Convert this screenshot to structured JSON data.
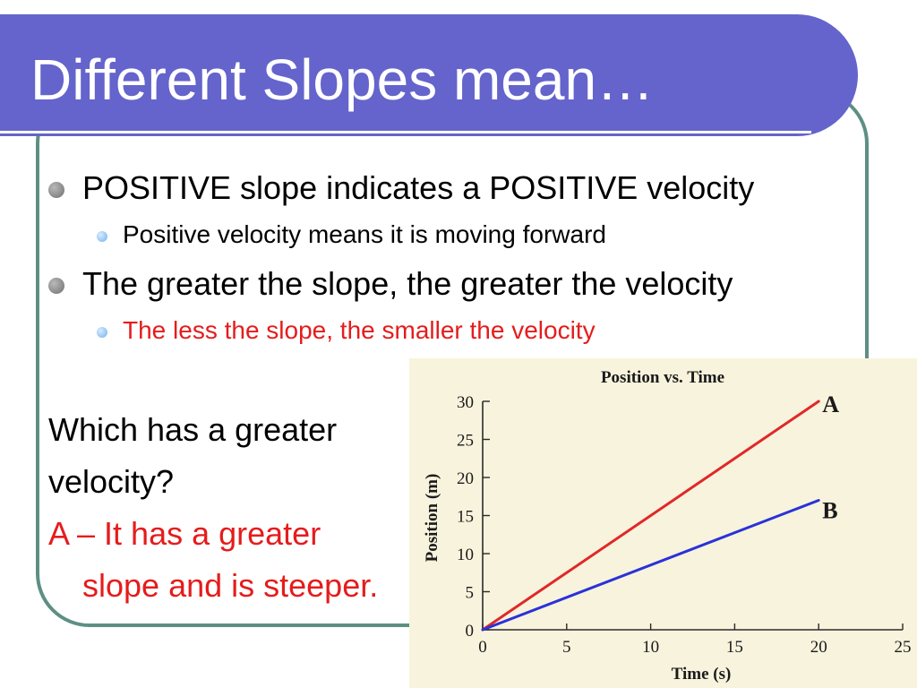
{
  "slide": {
    "title": "Different Slopes mean…",
    "bullets": [
      {
        "text": "POSITIVE slope indicates a POSITIVE velocity",
        "sub": "Positive velocity means it is moving forward",
        "sub_color": "#000000"
      },
      {
        "text": "The greater the slope, the greater the velocity",
        "sub": "The less the slope, the smaller the velocity",
        "sub_color": "#e51c1c"
      }
    ],
    "question_line1": "Which has a greater",
    "question_line2": "velocity?",
    "answer_line1": "A – It has a greater",
    "answer_line2": "slope and is steeper.",
    "answer_color": "#e51c1c",
    "colors": {
      "title_bar": "#6464cc",
      "frame_border": "#5e8f83",
      "chart_bg": "#f8f3dd"
    }
  },
  "chart_data": {
    "type": "line",
    "title": "Position vs. Time",
    "xlabel": "Time (s)",
    "ylabel": "Position (m)",
    "xlim": [
      0,
      25
    ],
    "ylim": [
      0,
      30
    ],
    "xticks": [
      0,
      5,
      10,
      15,
      20,
      25
    ],
    "yticks": [
      0,
      5,
      10,
      15,
      20,
      25,
      30
    ],
    "grid": false,
    "series": [
      {
        "name": "A",
        "color": "#e02828",
        "x": [
          0,
          20
        ],
        "y": [
          0,
          30
        ]
      },
      {
        "name": "B",
        "color": "#2a32d8",
        "x": [
          0,
          20
        ],
        "y": [
          0,
          17
        ]
      }
    ]
  }
}
